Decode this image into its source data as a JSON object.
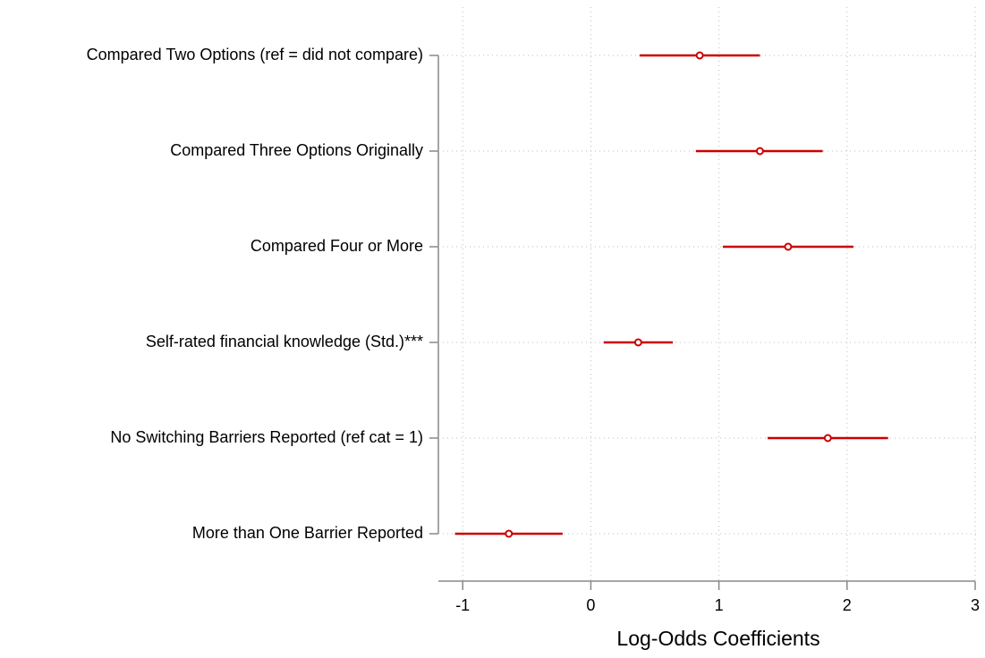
{
  "chart_data": {
    "type": "coefplot",
    "x_label": "Log-Odds Coefficients",
    "categories": [
      "Compared Two Options (ref = did not compare)",
      "Compared Three Options Originally",
      "Compared Four or More",
      "Self-rated financial knowledge (Std.)***",
      "No Switching Barriers Reported (ref cat  = 1)",
      "More than One Barrier Reported"
    ],
    "values": [
      0.85,
      1.32,
      1.54,
      0.37,
      1.85,
      -0.64
    ],
    "ci_low": [
      0.38,
      0.82,
      1.03,
      0.1,
      1.38,
      -1.06
    ],
    "ci_high": [
      1.32,
      1.81,
      2.05,
      0.64,
      2.32,
      -0.22
    ],
    "color": "#cc0000",
    "xlim": [
      -1.19,
      3
    ],
    "xticks": [
      -1,
      0,
      1,
      2,
      3
    ],
    "grid": true
  }
}
